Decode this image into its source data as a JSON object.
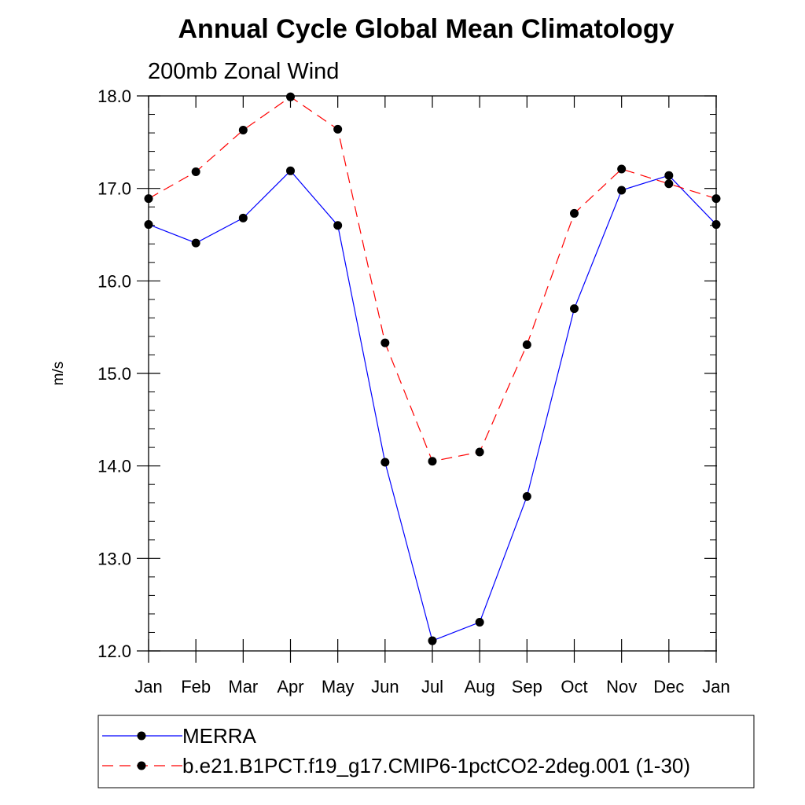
{
  "chart_data": {
    "type": "line",
    "title": "Annual Cycle Global Mean Climatology",
    "subtitle": "200mb Zonal Wind",
    "xlabel": "",
    "ylabel": "m/s",
    "ylim": [
      12.0,
      18.0
    ],
    "yticks": [
      "12.0",
      "13.0",
      "14.0",
      "15.0",
      "16.0",
      "17.0",
      "18.0"
    ],
    "categories": [
      "Jan",
      "Feb",
      "Mar",
      "Apr",
      "May",
      "Jun",
      "Jul",
      "Aug",
      "Sep",
      "Oct",
      "Nov",
      "Dec",
      "Jan"
    ],
    "grid": false,
    "legend_position": "bottom",
    "series": [
      {
        "name": "MERRA",
        "color": "#0000ff",
        "dashed": false,
        "values": [
          16.61,
          16.41,
          16.68,
          17.19,
          16.6,
          14.04,
          12.11,
          12.31,
          13.67,
          15.7,
          16.98,
          17.14,
          16.61
        ]
      },
      {
        "name": "b.e21.B1PCT.f19_g17.CMIP6-1pctCO2-2deg.001 (1-30)",
        "color": "#ff0000",
        "dashed": true,
        "values": [
          16.89,
          17.18,
          17.63,
          17.99,
          17.64,
          15.33,
          14.05,
          14.15,
          15.31,
          16.73,
          17.21,
          17.05,
          16.89
        ]
      }
    ]
  }
}
